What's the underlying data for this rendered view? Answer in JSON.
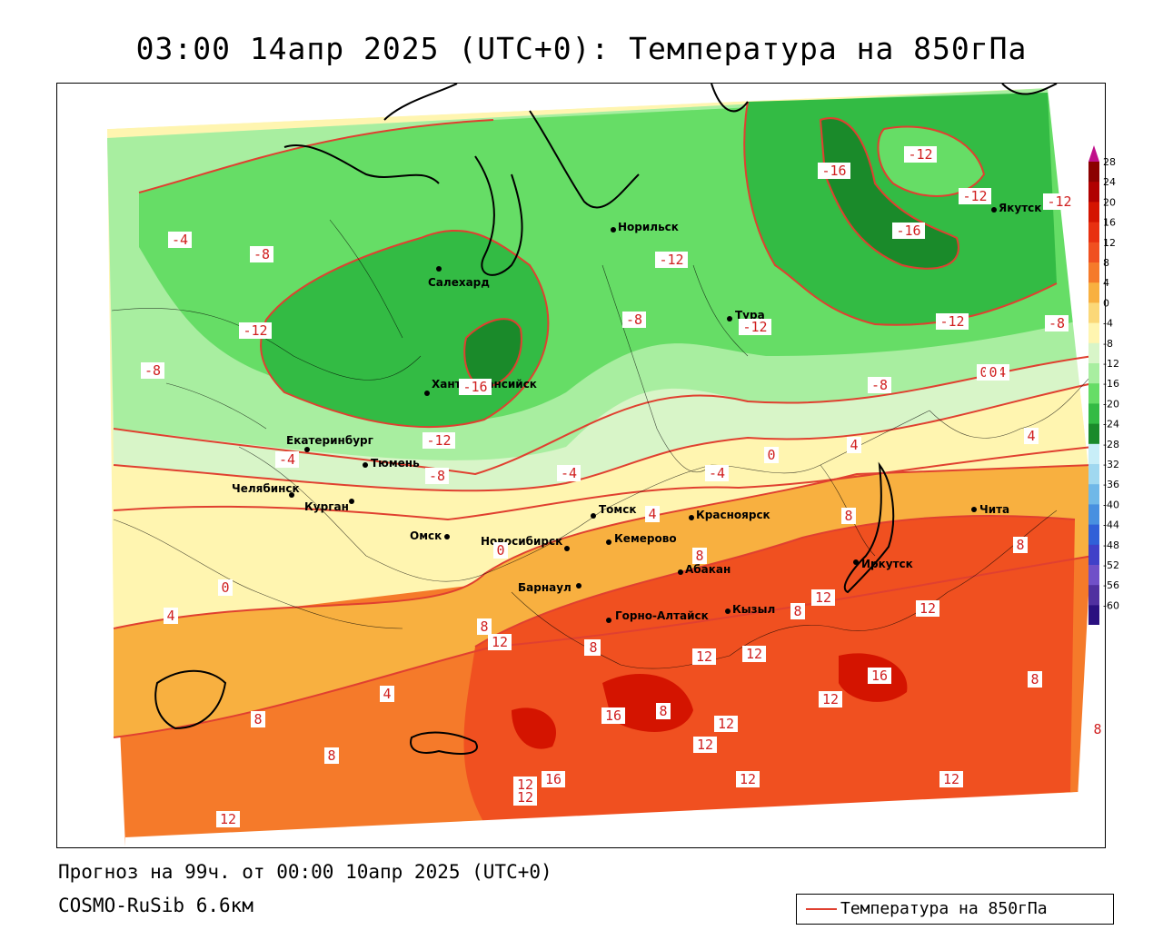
{
  "title": "03:00 14апр 2025 (UTC+0): Температура на 850гПа",
  "footer": {
    "forecast": "Прогноз на 99ч. от 00:00 10апр 2025 (UTC+0)",
    "model": "COSMO-RuSib 6.6км"
  },
  "legend": {
    "label": "Температура на 850гПа",
    "line_color": "#e04030"
  },
  "colorbar": {
    "ticks": [
      "28",
      "24",
      "20",
      "16",
      "12",
      "8",
      "4",
      "0",
      "-4",
      "-8",
      "-12",
      "-16",
      "-20",
      "-24",
      "-28",
      "-32",
      "-36",
      "-40",
      "-44",
      "-48",
      "-52",
      "-56",
      "-60"
    ],
    "colors": [
      "#8b0000",
      "#b00000",
      "#d41400",
      "#e83010",
      "#f05020",
      "#f57a2a",
      "#f8b040",
      "#fbd878",
      "#fff5b0",
      "#d8f5c8",
      "#a8eea0",
      "#66dd66",
      "#33bb44",
      "#1a8a2a",
      "#c8eef8",
      "#a0d8f0",
      "#70b8e8",
      "#4890e0",
      "#3060d8",
      "#4040c8",
      "#7050c8",
      "#5030a0",
      "#2a1080"
    ]
  },
  "cities": [
    {
      "name": "Салехард"
    },
    {
      "name": "Норильск"
    },
    {
      "name": "Якутск"
    },
    {
      "name": "Тура"
    },
    {
      "name": "Ханты-Мансийск"
    },
    {
      "name": "Екатеринбург"
    },
    {
      "name": "Тюмень"
    },
    {
      "name": "Челябинск"
    },
    {
      "name": "Курган"
    },
    {
      "name": "Омск"
    },
    {
      "name": "Новосибирск"
    },
    {
      "name": "Томск"
    },
    {
      "name": "Красноярск"
    },
    {
      "name": "Кемерово"
    },
    {
      "name": "Абакан"
    },
    {
      "name": "Барнаул"
    },
    {
      "name": "Горно-Алтайск"
    },
    {
      "name": "Кызыл"
    },
    {
      "name": "Иркутск"
    },
    {
      "name": "Чита"
    }
  ],
  "isotherm_labels": [
    {
      "text": "-4"
    },
    {
      "text": "-8"
    },
    {
      "text": "-12"
    },
    {
      "text": "-8"
    },
    {
      "text": "-16"
    },
    {
      "text": "-12"
    },
    {
      "text": "-4"
    },
    {
      "text": "-8"
    },
    {
      "text": "-16"
    },
    {
      "text": "-12"
    },
    {
      "text": "-16"
    },
    {
      "text": "-12"
    },
    {
      "text": "-12"
    },
    {
      "text": "-12"
    },
    {
      "text": "-8"
    },
    {
      "text": "-12"
    },
    {
      "text": "-12"
    },
    {
      "text": "-8"
    },
    {
      "text": "-8"
    },
    {
      "text": "0"
    },
    {
      "text": "4"
    },
    {
      "text": "-4"
    },
    {
      "text": "-4"
    },
    {
      "text": "0"
    },
    {
      "text": "4"
    },
    {
      "text": "4"
    },
    {
      "text": "8"
    },
    {
      "text": "0"
    },
    {
      "text": "0"
    },
    {
      "text": "4"
    },
    {
      "text": "8"
    },
    {
      "text": "8"
    },
    {
      "text": "12"
    },
    {
      "text": "12"
    },
    {
      "text": "8"
    },
    {
      "text": "12"
    },
    {
      "text": "8"
    },
    {
      "text": "8"
    },
    {
      "text": "12"
    },
    {
      "text": "12"
    },
    {
      "text": "16"
    },
    {
      "text": "12"
    },
    {
      "text": "8"
    },
    {
      "text": "4"
    },
    {
      "text": "8"
    },
    {
      "text": "8"
    },
    {
      "text": "16"
    },
    {
      "text": "8"
    },
    {
      "text": "12"
    },
    {
      "text": "12"
    },
    {
      "text": "12"
    },
    {
      "text": "16"
    },
    {
      "text": "12"
    },
    {
      "text": "12"
    },
    {
      "text": "12"
    },
    {
      "text": "12"
    },
    {
      "text": "8"
    },
    {
      "text": "8"
    },
    {
      "text": "-4"
    },
    {
      "text": "0"
    }
  ]
}
